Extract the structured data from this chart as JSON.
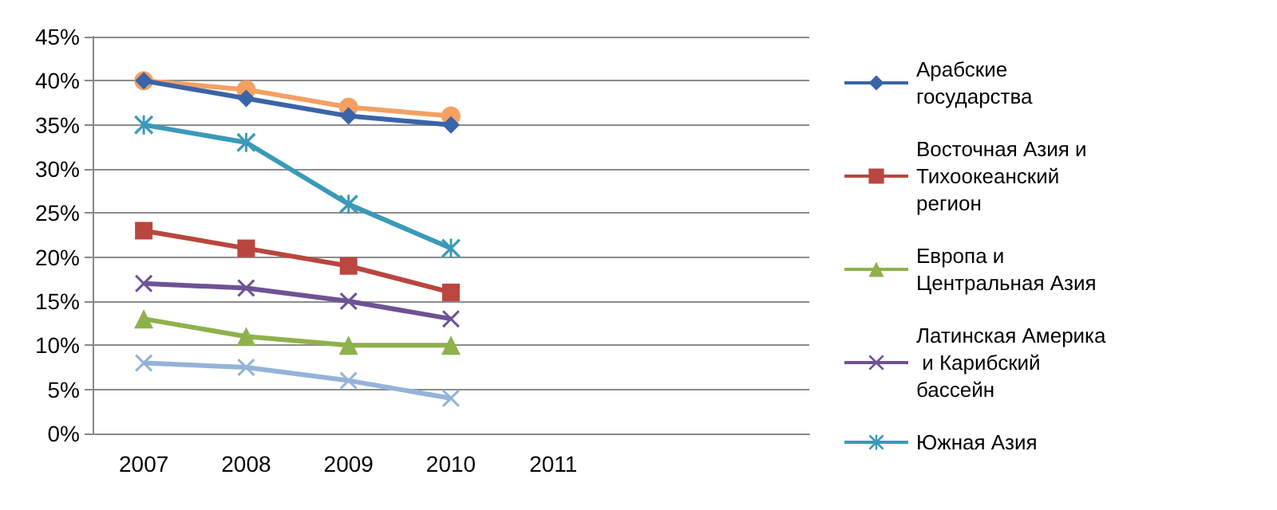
{
  "chart_data": {
    "type": "line",
    "categories": [
      "2007",
      "2008",
      "2009",
      "2010",
      "2011",
      null,
      null
    ],
    "ylim": [
      0,
      45
    ],
    "yticks": [
      {
        "value": 0,
        "label": "0%"
      },
      {
        "value": 5,
        "label": "5%"
      },
      {
        "value": 10,
        "label": "10%"
      },
      {
        "value": 15,
        "label": "15%"
      },
      {
        "value": 20,
        "label": "20%"
      },
      {
        "value": 25,
        "label": "25%"
      },
      {
        "value": 30,
        "label": "30%"
      },
      {
        "value": 35,
        "label": "35%"
      },
      {
        "value": 40,
        "label": "40%"
      },
      {
        "value": 45,
        "label": "45%"
      }
    ],
    "grid": "y",
    "legend": "right",
    "series": [
      {
        "name": "Арабские государства",
        "color": "#3a64a8",
        "marker": "diamond",
        "values": [
          40,
          38,
          36,
          35,
          null,
          null,
          null
        ]
      },
      {
        "name": "Восточная Азия и Тихоокеанский регион",
        "color": "#b9463f",
        "marker": "square",
        "values": [
          23,
          21,
          19,
          16,
          null,
          null,
          null
        ]
      },
      {
        "name": "Европа и Центральная Азия",
        "color": "#8fb14c",
        "marker": "triangle",
        "values": [
          13,
          11,
          10,
          10,
          null,
          null,
          null
        ]
      },
      {
        "name": "Латинская Америка и Карибский бассейн",
        "color": "#6e5296",
        "marker": "cross",
        "values": [
          17,
          16.5,
          15,
          13,
          null,
          null,
          null
        ]
      },
      {
        "name": "Южная Азия",
        "color": "#3a9ab8",
        "marker": "star",
        "values": [
          35,
          33,
          26,
          21,
          null,
          null,
          null
        ]
      },
      {
        "color": "#f4a062",
        "marker": "circle",
        "values": [
          40,
          39,
          37,
          36,
          null,
          null,
          null
        ]
      },
      {
        "color": "#95b3d7",
        "marker": "cross",
        "values": [
          8,
          7.5,
          6,
          4,
          null,
          null,
          null
        ]
      }
    ]
  }
}
